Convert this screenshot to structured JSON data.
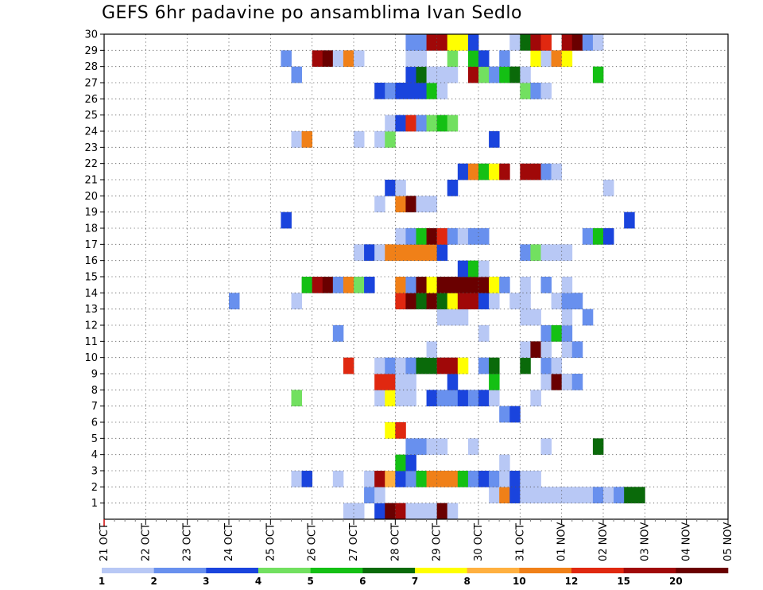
{
  "chart_data": {
    "type": "heatmap",
    "title": "GEFS 6hr padavine po ansamblima Ivan Sedlo",
    "y_ticks": [
      "1",
      "2",
      "3",
      "4",
      "5",
      "6",
      "7",
      "8",
      "9",
      "10",
      "11",
      "12",
      "13",
      "14",
      "15",
      "16",
      "17",
      "18",
      "19",
      "20",
      "21",
      "22",
      "23",
      "24",
      "25",
      "26",
      "27",
      "28",
      "29",
      "30"
    ],
    "x_ticks": [
      "21 OCT",
      "22 OCT",
      "23 OCT",
      "24 OCT",
      "25 OCT",
      "26 OCT",
      "27 OCT",
      "28 OCT",
      "29 OCT",
      "30 OCT",
      "31 OCT",
      "01 NOV",
      "02 NOV",
      "03 NOV",
      "04 NOV",
      "05 NOV"
    ],
    "x_range": [
      "21 OCT 00Z",
      "05 NOV 00Z"
    ],
    "y_range": [
      0,
      30
    ],
    "grid": true,
    "colorbar": {
      "labels": [
        "1",
        "2",
        "3",
        "4",
        "5",
        "6",
        "7",
        "8",
        "10",
        "12",
        "15",
        "20"
      ],
      "colors": [
        "#b8c8f5",
        "#6890ee",
        "#1a44dd",
        "#72e060",
        "#14c014",
        "#0a6a0a",
        "#ffff00",
        "#ffb040",
        "#f08018",
        "#e02810",
        "#a00808",
        "#6a0000"
      ]
    },
    "cells": [
      [
        0,
        23,
        1
      ],
      [
        0,
        24,
        1
      ],
      [
        0,
        26,
        3
      ],
      [
        0,
        27,
        12
      ],
      [
        0,
        28,
        11
      ],
      [
        0,
        29,
        1
      ],
      [
        0,
        30,
        1
      ],
      [
        0,
        31,
        1
      ],
      [
        0,
        32,
        12
      ],
      [
        0,
        33,
        1
      ],
      [
        1,
        25,
        2
      ],
      [
        1,
        26,
        1
      ],
      [
        1,
        37,
        1
      ],
      [
        1,
        38,
        9
      ],
      [
        1,
        39,
        3
      ],
      [
        1,
        40,
        1
      ],
      [
        1,
        41,
        1
      ],
      [
        1,
        42,
        1
      ],
      [
        1,
        43,
        1
      ],
      [
        1,
        44,
        1
      ],
      [
        1,
        45,
        1
      ],
      [
        1,
        46,
        1
      ],
      [
        1,
        47,
        2
      ],
      [
        1,
        48,
        1
      ],
      [
        1,
        49,
        2
      ],
      [
        1,
        50,
        6
      ],
      [
        1,
        51,
        6
      ],
      [
        2,
        18,
        1
      ],
      [
        2,
        19,
        3
      ],
      [
        2,
        22,
        1
      ],
      [
        2,
        25,
        1
      ],
      [
        2,
        26,
        11
      ],
      [
        2,
        27,
        8
      ],
      [
        2,
        28,
        3
      ],
      [
        2,
        29,
        2
      ],
      [
        2,
        30,
        5
      ],
      [
        2,
        31,
        9
      ],
      [
        2,
        32,
        9
      ],
      [
        2,
        33,
        9
      ],
      [
        2,
        34,
        5
      ],
      [
        2,
        35,
        2
      ],
      [
        2,
        36,
        3
      ],
      [
        2,
        37,
        2
      ],
      [
        2,
        38,
        1
      ],
      [
        2,
        39,
        3
      ],
      [
        2,
        40,
        1
      ],
      [
        2,
        41,
        1
      ],
      [
        3,
        28,
        5
      ],
      [
        3,
        29,
        3
      ],
      [
        3,
        38,
        1
      ],
      [
        4,
        29,
        2
      ],
      [
        4,
        30,
        2
      ],
      [
        4,
        31,
        1
      ],
      [
        4,
        32,
        1
      ],
      [
        4,
        35,
        1
      ],
      [
        4,
        42,
        1
      ],
      [
        4,
        47,
        6
      ],
      [
        5,
        27,
        7
      ],
      [
        5,
        28,
        10
      ],
      [
        6,
        38,
        2
      ],
      [
        6,
        39,
        3
      ],
      [
        7,
        18,
        4
      ],
      [
        7,
        26,
        1
      ],
      [
        7,
        27,
        7
      ],
      [
        7,
        28,
        1
      ],
      [
        7,
        29,
        1
      ],
      [
        7,
        31,
        3
      ],
      [
        7,
        32,
        2
      ],
      [
        7,
        33,
        2
      ],
      [
        7,
        34,
        3
      ],
      [
        7,
        35,
        2
      ],
      [
        7,
        36,
        3
      ],
      [
        7,
        37,
        1
      ],
      [
        7,
        41,
        1
      ],
      [
        8,
        26,
        10
      ],
      [
        8,
        27,
        10
      ],
      [
        8,
        28,
        1
      ],
      [
        8,
        29,
        1
      ],
      [
        8,
        33,
        3
      ],
      [
        8,
        37,
        5
      ],
      [
        8,
        42,
        1
      ],
      [
        8,
        43,
        12
      ],
      [
        8,
        44,
        1
      ],
      [
        8,
        45,
        2
      ],
      [
        9,
        23,
        10
      ],
      [
        9,
        26,
        1
      ],
      [
        9,
        27,
        2
      ],
      [
        9,
        28,
        1
      ],
      [
        9,
        29,
        2
      ],
      [
        9,
        30,
        6
      ],
      [
        9,
        31,
        6
      ],
      [
        9,
        32,
        11
      ],
      [
        9,
        33,
        11
      ],
      [
        9,
        34,
        7
      ],
      [
        9,
        36,
        2
      ],
      [
        9,
        37,
        6
      ],
      [
        9,
        40,
        6
      ],
      [
        9,
        42,
        2
      ],
      [
        9,
        43,
        1
      ],
      [
        10,
        31,
        1
      ],
      [
        10,
        40,
        1
      ],
      [
        10,
        41,
        12
      ],
      [
        10,
        42,
        1
      ],
      [
        10,
        44,
        1
      ],
      [
        10,
        45,
        2
      ],
      [
        11,
        22,
        2
      ],
      [
        11,
        36,
        1
      ],
      [
        11,
        42,
        2
      ],
      [
        11,
        43,
        5
      ],
      [
        11,
        44,
        2
      ],
      [
        12,
        32,
        1
      ],
      [
        12,
        33,
        1
      ],
      [
        12,
        34,
        1
      ],
      [
        12,
        40,
        1
      ],
      [
        12,
        41,
        1
      ],
      [
        12,
        44,
        1
      ],
      [
        12,
        46,
        2
      ],
      [
        13,
        12,
        2
      ],
      [
        13,
        18,
        1
      ],
      [
        13,
        28,
        10
      ],
      [
        13,
        29,
        12
      ],
      [
        13,
        30,
        6
      ],
      [
        13,
        31,
        12
      ],
      [
        13,
        32,
        6
      ],
      [
        13,
        33,
        7
      ],
      [
        13,
        34,
        11
      ],
      [
        13,
        35,
        11
      ],
      [
        13,
        36,
        3
      ],
      [
        13,
        37,
        1
      ],
      [
        13,
        39,
        1
      ],
      [
        13,
        40,
        1
      ],
      [
        13,
        43,
        1
      ],
      [
        13,
        44,
        2
      ],
      [
        13,
        45,
        2
      ],
      [
        14,
        19,
        5
      ],
      [
        14,
        20,
        11
      ],
      [
        14,
        21,
        12
      ],
      [
        14,
        22,
        2
      ],
      [
        14,
        23,
        9
      ],
      [
        14,
        24,
        4
      ],
      [
        14,
        25,
        3
      ],
      [
        14,
        28,
        9
      ],
      [
        14,
        29,
        2
      ],
      [
        14,
        30,
        12
      ],
      [
        14,
        31,
        7
      ],
      [
        14,
        32,
        12
      ],
      [
        14,
        33,
        12
      ],
      [
        14,
        34,
        12
      ],
      [
        14,
        35,
        12
      ],
      [
        14,
        36,
        12
      ],
      [
        14,
        37,
        7
      ],
      [
        14,
        38,
        2
      ],
      [
        14,
        40,
        1
      ],
      [
        14,
        42,
        2
      ],
      [
        14,
        44,
        1
      ],
      [
        15,
        34,
        3
      ],
      [
        15,
        35,
        5
      ],
      [
        15,
        36,
        1
      ],
      [
        16,
        24,
        1
      ],
      [
        16,
        25,
        3
      ],
      [
        16,
        26,
        1
      ],
      [
        16,
        27,
        9
      ],
      [
        16,
        28,
        9
      ],
      [
        16,
        29,
        9
      ],
      [
        16,
        30,
        9
      ],
      [
        16,
        31,
        9
      ],
      [
        16,
        32,
        3
      ],
      [
        16,
        40,
        2
      ],
      [
        16,
        41,
        4
      ],
      [
        16,
        42,
        1
      ],
      [
        16,
        43,
        1
      ],
      [
        16,
        44,
        1
      ],
      [
        17,
        28,
        1
      ],
      [
        17,
        29,
        2
      ],
      [
        17,
        30,
        5
      ],
      [
        17,
        31,
        12
      ],
      [
        17,
        32,
        10
      ],
      [
        17,
        33,
        2
      ],
      [
        17,
        34,
        1
      ],
      [
        17,
        35,
        2
      ],
      [
        17,
        36,
        2
      ],
      [
        17,
        46,
        2
      ],
      [
        17,
        47,
        5
      ],
      [
        17,
        48,
        3
      ],
      [
        18,
        17,
        3
      ],
      [
        18,
        50,
        3
      ],
      [
        19,
        26,
        1
      ],
      [
        19,
        28,
        9
      ],
      [
        19,
        29,
        12
      ],
      [
        19,
        30,
        1
      ],
      [
        19,
        31,
        1
      ],
      [
        20,
        27,
        3
      ],
      [
        20,
        28,
        1
      ],
      [
        20,
        33,
        3
      ],
      [
        20,
        48,
        1
      ],
      [
        21,
        34,
        3
      ],
      [
        21,
        35,
        9
      ],
      [
        21,
        36,
        5
      ],
      [
        21,
        37,
        7
      ],
      [
        21,
        38,
        11
      ],
      [
        21,
        40,
        11
      ],
      [
        21,
        41,
        11
      ],
      [
        21,
        42,
        2
      ],
      [
        21,
        43,
        1
      ],
      [
        23,
        18,
        1
      ],
      [
        23,
        19,
        9
      ],
      [
        23,
        24,
        1
      ],
      [
        23,
        26,
        1
      ],
      [
        23,
        27,
        4
      ],
      [
        23,
        37,
        3
      ],
      [
        24,
        27,
        1
      ],
      [
        24,
        28,
        3
      ],
      [
        24,
        29,
        10
      ],
      [
        24,
        30,
        2
      ],
      [
        24,
        31,
        4
      ],
      [
        24,
        32,
        5
      ],
      [
        24,
        33,
        4
      ],
      [
        26,
        26,
        3
      ],
      [
        26,
        27,
        2
      ],
      [
        26,
        28,
        3
      ],
      [
        26,
        29,
        3
      ],
      [
        26,
        30,
        3
      ],
      [
        26,
        31,
        5
      ],
      [
        26,
        32,
        1
      ],
      [
        26,
        40,
        4
      ],
      [
        26,
        41,
        2
      ],
      [
        26,
        42,
        1
      ],
      [
        27,
        18,
        2
      ],
      [
        27,
        29,
        3
      ],
      [
        27,
        30,
        6
      ],
      [
        27,
        31,
        1
      ],
      [
        27,
        32,
        1
      ],
      [
        27,
        33,
        1
      ],
      [
        27,
        35,
        11
      ],
      [
        27,
        36,
        4
      ],
      [
        27,
        37,
        2
      ],
      [
        27,
        38,
        5
      ],
      [
        27,
        39,
        6
      ],
      [
        27,
        40,
        1
      ],
      [
        27,
        47,
        5
      ],
      [
        28,
        17,
        2
      ],
      [
        28,
        20,
        11
      ],
      [
        28,
        21,
        12
      ],
      [
        28,
        22,
        1
      ],
      [
        28,
        23,
        9
      ],
      [
        28,
        24,
        1
      ],
      [
        28,
        29,
        1
      ],
      [
        28,
        30,
        1
      ],
      [
        28,
        33,
        4
      ],
      [
        28,
        35,
        5
      ],
      [
        28,
        36,
        3
      ],
      [
        28,
        38,
        2
      ],
      [
        28,
        41,
        7
      ],
      [
        28,
        42,
        1
      ],
      [
        28,
        43,
        9
      ],
      [
        28,
        44,
        7
      ],
      [
        29,
        29,
        2
      ],
      [
        29,
        30,
        2
      ],
      [
        29,
        31,
        11
      ],
      [
        29,
        32,
        11
      ],
      [
        29,
        33,
        7
      ],
      [
        29,
        34,
        7
      ],
      [
        29,
        35,
        3
      ],
      [
        29,
        39,
        1
      ],
      [
        29,
        40,
        6
      ],
      [
        29,
        41,
        11
      ],
      [
        29,
        42,
        10
      ],
      [
        29,
        44,
        11
      ],
      [
        29,
        45,
        12
      ],
      [
        29,
        46,
        2
      ],
      [
        29,
        47,
        1
      ]
    ]
  }
}
